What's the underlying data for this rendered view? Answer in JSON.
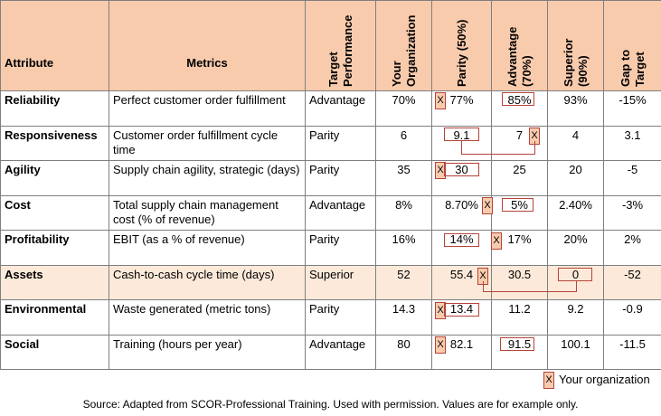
{
  "table": {
    "columns": [
      "Attribute",
      "Metrics",
      "Target Performance",
      "Your Organization",
      "Parity (50%)",
      "Advantage (70%)",
      "Superior (90%)",
      "Gap to Target"
    ],
    "rows": [
      [
        "Reliability",
        "Perfect customer order fulfillment",
        "Advantage",
        "70%",
        "77%",
        "85%",
        "93%",
        "-15%"
      ],
      [
        "Responsiveness",
        "Customer order fulfillment cycle time",
        "Parity",
        "6",
        "9.1",
        "7",
        "4",
        "3.1"
      ],
      [
        "Agility",
        "Supply chain agility, strategic (days)",
        "Parity",
        "35",
        "30",
        "25",
        "20",
        "-5"
      ],
      [
        "Cost",
        "Total supply chain management cost (% of revenue)",
        "Advantage",
        "8%",
        "8.70%",
        "5%",
        "2.40%",
        "-3%"
      ],
      [
        "Profitability",
        "EBIT (as a % of revenue)",
        "Parity",
        "16%",
        "14%",
        "17%",
        "20%",
        "2%"
      ],
      [
        "Assets",
        "Cash-to-cash cycle time (days)",
        "Superior",
        "52",
        "55.4",
        "30.5",
        "0",
        "-52"
      ],
      [
        "Environmental",
        "Waste generated (metric tons)",
        "Parity",
        "14.3",
        "13.4",
        "11.2",
        "9.2",
        "-0.9"
      ],
      [
        "Social",
        "Training (hours per year)",
        "Advantage",
        "80",
        "82.1",
        "91.5",
        "100.1",
        "-11.5"
      ]
    ]
  },
  "legend": {
    "marker": "X",
    "label": "Your organization"
  },
  "source": "Source: Adapted from SCOR-Professional Training. Used with permission. Values are for example only."
}
